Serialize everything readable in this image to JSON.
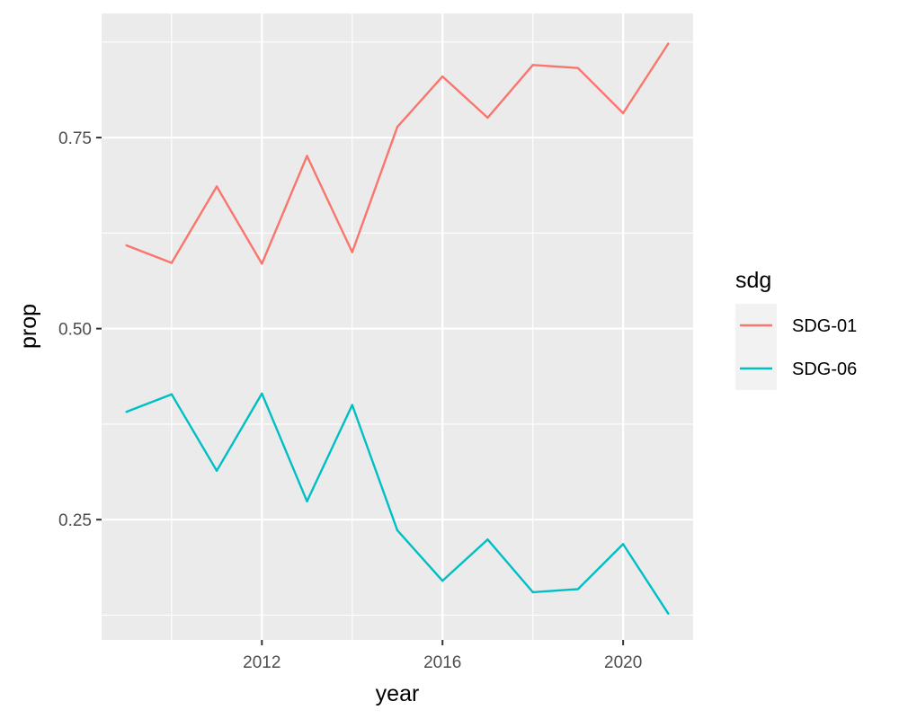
{
  "chart_data": {
    "type": "line",
    "title": "",
    "xlabel": "year",
    "ylabel": "prop",
    "xlim": [
      2008.45,
      2021.55
    ],
    "ylim": [
      0.0926,
      0.9124
    ],
    "x_ticks": [
      2012,
      2016,
      2020
    ],
    "x_tick_labels": [
      "2012",
      "2016",
      "2020"
    ],
    "y_ticks": [
      0.25,
      0.5,
      0.75
    ],
    "y_tick_labels": [
      "0.25",
      "0.50",
      "0.75"
    ],
    "grid": true,
    "legend": {
      "title": "sdg",
      "position": "right"
    },
    "x": [
      2009,
      2010,
      2011,
      2012,
      2013,
      2014,
      2015,
      2016,
      2017,
      2018,
      2019,
      2020,
      2021
    ],
    "series": [
      {
        "name": "SDG-01",
        "color": "#F8766D",
        "values": [
          0.609,
          0.586,
          0.686,
          0.585,
          0.726,
          0.6,
          0.764,
          0.83,
          0.776,
          0.845,
          0.841,
          0.782,
          0.873
        ]
      },
      {
        "name": "SDG-06",
        "color": "#00BFC4",
        "values": [
          0.391,
          0.414,
          0.314,
          0.415,
          0.274,
          0.4,
          0.236,
          0.17,
          0.224,
          0.155,
          0.159,
          0.218,
          0.127
        ]
      }
    ]
  }
}
